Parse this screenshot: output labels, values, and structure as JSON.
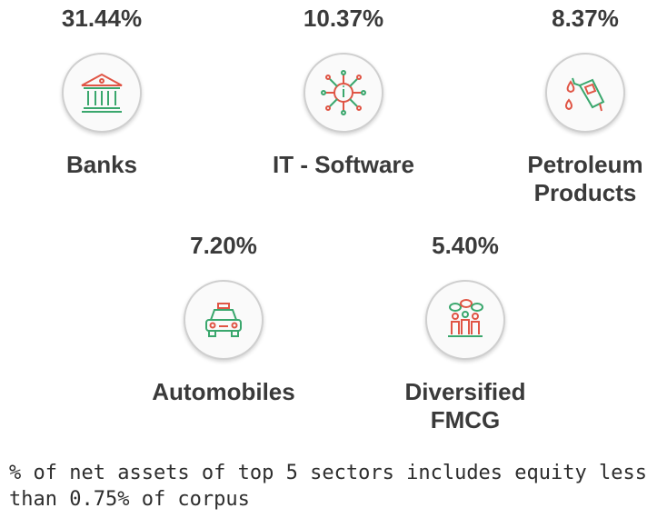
{
  "sectors": [
    {
      "percent": "31.44%",
      "name": "Banks",
      "icon": "bank-building-icon"
    },
    {
      "percent": "10.37%",
      "name": "IT - Software",
      "icon": "microchip-circuit-icon"
    },
    {
      "percent": "8.37%",
      "name": "Petroleum Products",
      "icon": "fuel-nozzle-icon"
    },
    {
      "percent": "7.20%",
      "name": "Automobiles",
      "icon": "taxi-car-icon"
    },
    {
      "percent": "5.40%",
      "name": "Diversified FMCG",
      "icon": "consumer-goods-icon"
    }
  ],
  "colors": {
    "icon_green": "#3aa76d",
    "icon_red": "#e05545",
    "text": "#3a3a3a",
    "circle_border": "#cfcfcf"
  },
  "footnote": "% of net assets of top 5 sectors includes equity less than 0.75% of corpus"
}
